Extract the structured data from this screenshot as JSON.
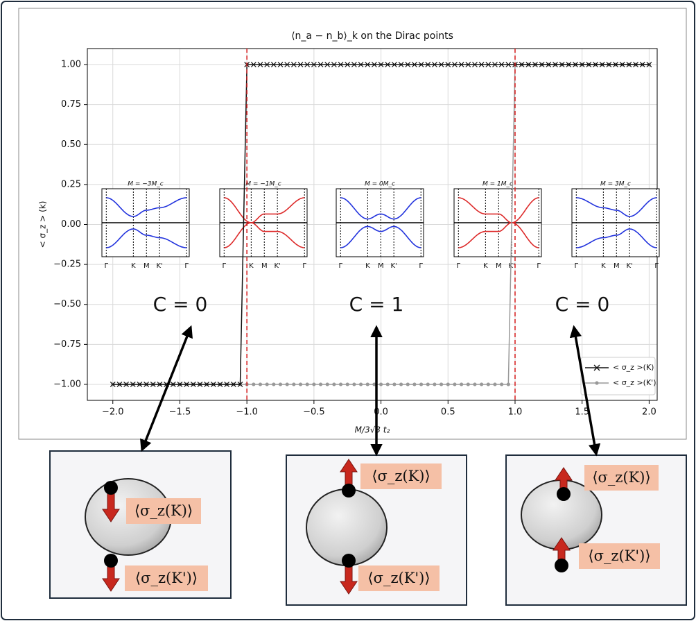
{
  "chart_data": {
    "type": "line",
    "title": "⟨n_a − n_b⟩_k on the Dirac points",
    "xlabel": "M/3√3 t₂",
    "ylabel": "< σ_z > (k)",
    "x": [
      -2,
      -1.95,
      -1.9,
      -1.85,
      -1.8,
      -1.75,
      -1.7,
      -1.65,
      -1.6,
      -1.55,
      -1.5,
      -1.45,
      -1.4,
      -1.35,
      -1.3,
      -1.25,
      -1.2,
      -1.15,
      -1.1,
      -1.05,
      -1,
      -0.95,
      -0.9,
      -0.85,
      -0.8,
      -0.75,
      -0.7,
      -0.65,
      -0.6,
      -0.55,
      -0.5,
      -0.45,
      -0.4,
      -0.35,
      -0.3,
      -0.25,
      -0.2,
      -0.15,
      -0.1,
      -0.05,
      0,
      0.05,
      0.1,
      0.15,
      0.2,
      0.25,
      0.3,
      0.35,
      0.4,
      0.45,
      0.5,
      0.55,
      0.6,
      0.65,
      0.7,
      0.75,
      0.8,
      0.85,
      0.9,
      0.95,
      1,
      1.05,
      1.1,
      1.15,
      1.2,
      1.25,
      1.3,
      1.35,
      1.4,
      1.45,
      1.5,
      1.55,
      1.6,
      1.65,
      1.7,
      1.75,
      1.8,
      1.85,
      1.9,
      1.95,
      2
    ],
    "series": [
      {
        "name": "< σ_z >(K)",
        "color": "#111111",
        "marker": "x",
        "values": [
          -1,
          -1,
          -1,
          -1,
          -1,
          -1,
          -1,
          -1,
          -1,
          -1,
          -1,
          -1,
          -1,
          -1,
          -1,
          -1,
          -1,
          -1,
          -1,
          -1,
          1,
          1,
          1,
          1,
          1,
          1,
          1,
          1,
          1,
          1,
          1,
          1,
          1,
          1,
          1,
          1,
          1,
          1,
          1,
          1,
          1,
          1,
          1,
          1,
          1,
          1,
          1,
          1,
          1,
          1,
          1,
          1,
          1,
          1,
          1,
          1,
          1,
          1,
          1,
          1,
          1,
          1,
          1,
          1,
          1,
          1,
          1,
          1,
          1,
          1,
          1,
          1,
          1,
          1,
          1,
          1,
          1,
          1,
          1,
          1,
          1
        ]
      },
      {
        "name": "< σ_z >(K')",
        "color": "#999999",
        "marker": "o",
        "values": [
          -1,
          -1,
          -1,
          -1,
          -1,
          -1,
          -1,
          -1,
          -1,
          -1,
          -1,
          -1,
          -1,
          -1,
          -1,
          -1,
          -1,
          -1,
          -1,
          -1,
          -1,
          -1,
          -1,
          -1,
          -1,
          -1,
          -1,
          -1,
          -1,
          -1,
          -1,
          -1,
          -1,
          -1,
          -1,
          -1,
          -1,
          -1,
          -1,
          -1,
          -1,
          -1,
          -1,
          -1,
          -1,
          -1,
          -1,
          -1,
          -1,
          -1,
          -1,
          -1,
          -1,
          -1,
          -1,
          -1,
          -1,
          -1,
          -1,
          -1,
          1,
          1,
          1,
          1,
          1,
          1,
          1,
          1,
          1,
          1,
          1,
          1,
          1,
          1,
          1,
          1,
          1,
          1,
          1,
          1,
          1
        ]
      }
    ],
    "xlim": [
      -2.19,
      2.06
    ],
    "ylim": [
      -1.1,
      1.1
    ],
    "xticks": [
      {
        "value": -2,
        "label": "−2.0"
      },
      {
        "value": -1.5,
        "label": "−1.5"
      },
      {
        "value": -1,
        "label": "−1.0"
      },
      {
        "value": -0.5,
        "label": "−0.5"
      },
      {
        "value": 0,
        "label": "0.0"
      },
      {
        "value": 0.5,
        "label": "0.5"
      },
      {
        "value": 1,
        "label": "1.0"
      },
      {
        "value": 1.5,
        "label": "1.5"
      },
      {
        "value": 2,
        "label": "2.0"
      }
    ],
    "yticks": [
      {
        "value": -1,
        "label": "−1.00"
      },
      {
        "value": -0.75,
        "label": "−0.75"
      },
      {
        "value": -0.5,
        "label": "−0.50"
      },
      {
        "value": -0.25,
        "label": "−0.25"
      },
      {
        "value": 0,
        "label": "0.00"
      },
      {
        "value": 0.25,
        "label": "0.25"
      },
      {
        "value": 0.5,
        "label": "0.50"
      },
      {
        "value": 0.75,
        "label": "0.75"
      },
      {
        "value": 1,
        "label": "1.00"
      }
    ],
    "grid": true,
    "legend": "lower right",
    "vlines": [
      -1,
      1
    ],
    "vline_color": "#d62728",
    "annotations": [
      "C = 0",
      "C = 1",
      "C = 0"
    ],
    "insets": [
      {
        "title": "M = −3M_c",
        "color": "#2233dd"
      },
      {
        "title": "M = −1M_c",
        "color": "#dd2a2a"
      },
      {
        "title": "M = 0M_c",
        "color": "#2233dd"
      },
      {
        "title": "M = 1M_c",
        "color": "#dd2a2a"
      },
      {
        "title": "M = 3M_c",
        "color": "#2233dd"
      }
    ],
    "inset_xticks": [
      "Γ",
      "K",
      "M",
      "K'",
      "Γ"
    ]
  },
  "panels": [
    {
      "top": "⟨σ_z(K)⟩",
      "bottom": "⟨σ_z(K')⟩"
    },
    {
      "top": "⟨σ_z(K)⟩",
      "bottom": "⟨σ_z(K')⟩"
    },
    {
      "top": "⟨σ_z(K)⟩",
      "bottom": "⟨σ_z(K')⟩"
    }
  ]
}
